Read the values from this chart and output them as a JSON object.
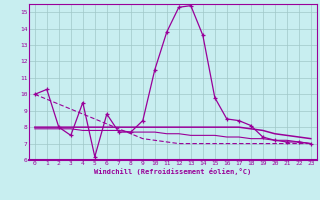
{
  "xlabel": "Windchill (Refroidissement éolien,°C)",
  "bg_color": "#c8eef0",
  "line_color": "#990099",
  "grid_color": "#a0c8c8",
  "xmin": -0.5,
  "xmax": 23.5,
  "ymin": 6,
  "ymax": 15.5,
  "yticks": [
    6,
    7,
    8,
    9,
    10,
    11,
    12,
    13,
    14,
    15
  ],
  "xticks": [
    0,
    1,
    2,
    3,
    4,
    5,
    6,
    7,
    8,
    9,
    10,
    11,
    12,
    13,
    14,
    15,
    16,
    17,
    18,
    19,
    20,
    21,
    22,
    23
  ],
  "s1_x": [
    0,
    1,
    2,
    3,
    4,
    5,
    6,
    7,
    8,
    9,
    10,
    11,
    12,
    13,
    14,
    15,
    16,
    17,
    18,
    19,
    20,
    21,
    22,
    23
  ],
  "s1_y": [
    10.0,
    10.3,
    8.0,
    7.5,
    9.5,
    6.2,
    8.8,
    7.7,
    7.7,
    8.4,
    11.5,
    13.8,
    15.3,
    15.4,
    13.6,
    9.8,
    8.5,
    8.4,
    8.1,
    7.4,
    7.2,
    7.1,
    7.1,
    7.0
  ],
  "s2_x": [
    0,
    1,
    2,
    3,
    4,
    5,
    6,
    7,
    8,
    9,
    10,
    11,
    12,
    13,
    14,
    15,
    16,
    17,
    18,
    19,
    20,
    21,
    22,
    23
  ],
  "s2_y": [
    10.0,
    9.7,
    9.4,
    9.1,
    8.8,
    8.5,
    8.2,
    7.9,
    7.6,
    7.3,
    7.2,
    7.1,
    7.0,
    7.0,
    7.0,
    7.0,
    7.0,
    7.0,
    7.0,
    7.0,
    7.0,
    7.0,
    7.0,
    7.0
  ],
  "s3_x": [
    0,
    1,
    2,
    3,
    4,
    5,
    6,
    7,
    8,
    9,
    10,
    11,
    12,
    13,
    14,
    15,
    16,
    17,
    18,
    19,
    20,
    21,
    22,
    23
  ],
  "s3_y": [
    8.0,
    8.0,
    8.0,
    8.0,
    8.0,
    8.0,
    8.0,
    8.0,
    8.0,
    8.0,
    8.0,
    8.0,
    8.0,
    8.0,
    8.0,
    8.0,
    8.0,
    8.0,
    7.9,
    7.8,
    7.6,
    7.5,
    7.4,
    7.3
  ],
  "s4_x": [
    0,
    1,
    2,
    3,
    4,
    5,
    6,
    7,
    8,
    9,
    10,
    11,
    12,
    13,
    14,
    15,
    16,
    17,
    18,
    19,
    20,
    21,
    22,
    23
  ],
  "s4_y": [
    7.9,
    7.9,
    7.9,
    7.9,
    7.8,
    7.8,
    7.8,
    7.8,
    7.7,
    7.7,
    7.7,
    7.6,
    7.6,
    7.5,
    7.5,
    7.5,
    7.4,
    7.4,
    7.3,
    7.3,
    7.2,
    7.2,
    7.1,
    7.0
  ]
}
